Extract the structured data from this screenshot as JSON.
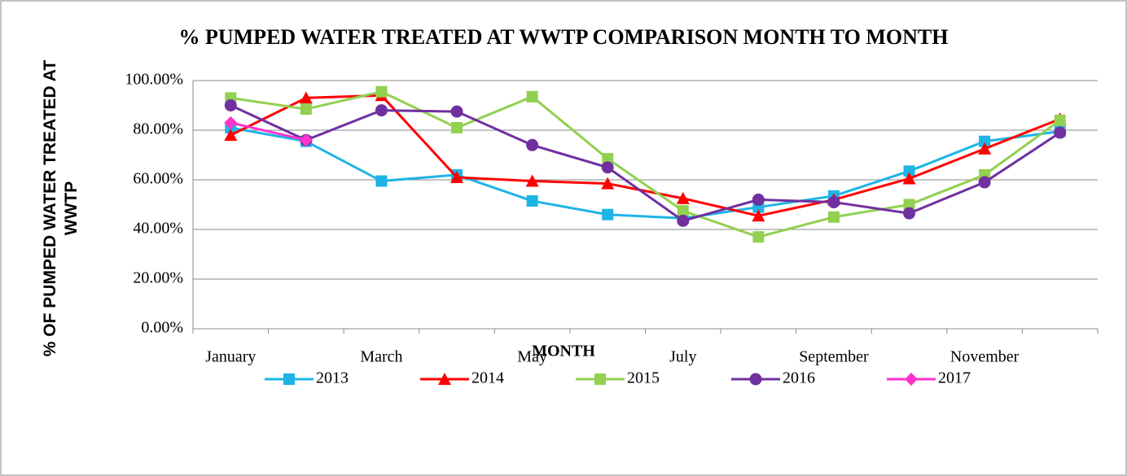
{
  "chart_data": {
    "type": "line",
    "title": "% PUMPED WATER TREATED AT WWTP COMPARISON MONTH TO MONTH",
    "x_label": "MONTH",
    "y_label": "% OF PUMPED WATER TREATED AT WWTP",
    "categories": [
      "January",
      null,
      "March",
      null,
      "May",
      null,
      "July",
      null,
      "September",
      null,
      "November",
      null
    ],
    "ylim": [
      0,
      100
    ],
    "yticks": [
      {
        "value": 0,
        "label": "0.00%"
      },
      {
        "value": 20,
        "label": "20.00%"
      },
      {
        "value": 40,
        "label": "40.00%"
      },
      {
        "value": 60,
        "label": "60.00%"
      },
      {
        "value": 80,
        "label": "80.00%"
      },
      {
        "value": 100,
        "label": "100.00%"
      }
    ],
    "grid": true,
    "legend": "bottom",
    "series": [
      {
        "name": "2013",
        "color": "#1eb4e6",
        "marker": "square",
        "values": [
          81,
          75.5,
          59.5,
          62,
          51.5,
          46,
          44.5,
          49,
          53.5,
          63.5,
          75.5,
          79.5
        ]
      },
      {
        "name": "2014",
        "color": "#ff0000",
        "marker": "triangle",
        "values": [
          78,
          93,
          94,
          61,
          59.5,
          58.5,
          52.5,
          45.5,
          52,
          60.5,
          72.5,
          84.5
        ]
      },
      {
        "name": "2015",
        "color": "#92d050",
        "marker": "square",
        "values": [
          93,
          88.5,
          95.5,
          81,
          93.5,
          68.5,
          47.5,
          37,
          45,
          50,
          62,
          84
        ]
      },
      {
        "name": "2016",
        "color": "#7030a0",
        "marker": "circle",
        "values": [
          90,
          76,
          88,
          87.5,
          74,
          65,
          43.5,
          52,
          51,
          46.5,
          59,
          79
        ]
      },
      {
        "name": "2017",
        "color": "#ff33cc",
        "marker": "diamond",
        "values": [
          83,
          76,
          null,
          null,
          null,
          null,
          null,
          null,
          null,
          null,
          null,
          null
        ]
      }
    ]
  }
}
